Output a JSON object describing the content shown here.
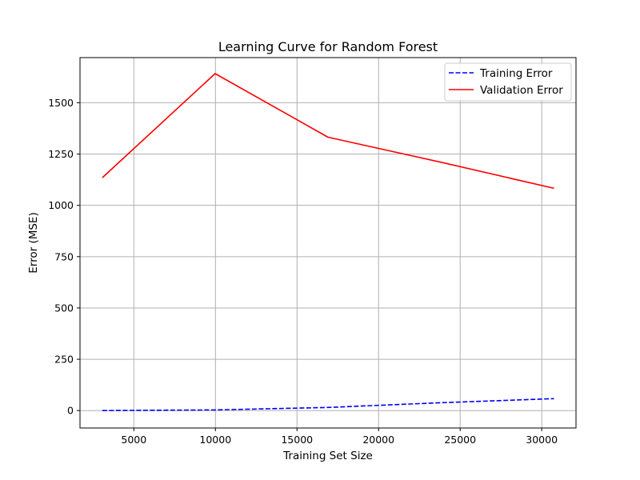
{
  "chart_data": {
    "type": "line",
    "title": "Learning Curve for Random Forest",
    "xlabel": "Training Set Size",
    "ylabel": "Error (MSE)",
    "xlim": [
      1700,
      32100
    ],
    "ylim": [
      -85,
      1720
    ],
    "xticks": [
      5000,
      10000,
      15000,
      20000,
      25000,
      30000
    ],
    "yticks": [
      0,
      250,
      500,
      750,
      1000,
      1250,
      1500
    ],
    "grid": true,
    "legend_position": "top-right",
    "series": [
      {
        "name": "Training Error",
        "color": "#0000ff",
        "dash": "dashed",
        "x": [
          3070,
          9980,
          16900,
          23830,
          30750
        ],
        "y": [
          0,
          3,
          15,
          38,
          58
        ]
      },
      {
        "name": "Validation Error",
        "color": "#ff0000",
        "dash": "solid",
        "x": [
          3070,
          9980,
          16900,
          23830,
          30750
        ],
        "y": [
          1135,
          1642,
          1332,
          1210,
          1083
        ]
      }
    ]
  }
}
